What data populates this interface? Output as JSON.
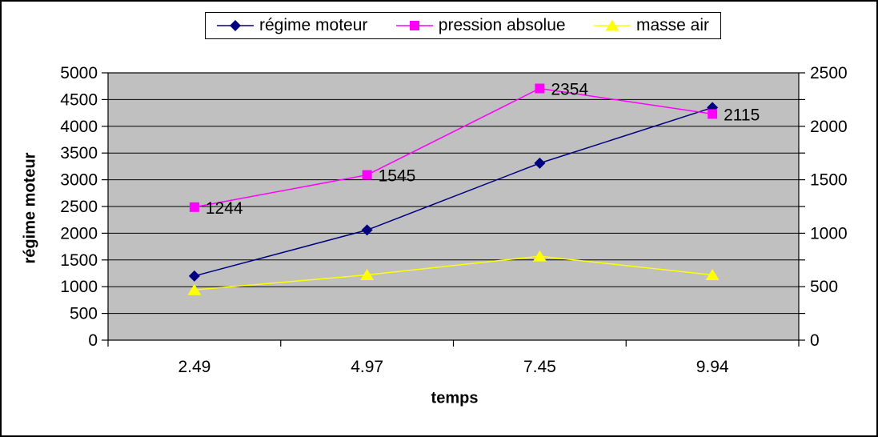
{
  "chart_data": {
    "type": "line",
    "categories": [
      "2.49",
      "4.97",
      "7.45",
      "9.94"
    ],
    "xlabel": "temps",
    "left_axis": {
      "title": "régime moteur",
      "min": 0,
      "max": 5000,
      "step": 500,
      "tick_labels": [
        "0",
        "500",
        "1000",
        "1500",
        "2000",
        "2500",
        "3000",
        "3500",
        "4000",
        "4500",
        "5000"
      ]
    },
    "right_axis": {
      "min": 0,
      "max": 2500,
      "tick_step": 250,
      "label_step": 500,
      "tick_labels": [
        "0",
        "500",
        "1000",
        "1500",
        "2000",
        "2500"
      ]
    },
    "series": [
      {
        "name": "régime moteur",
        "axis": "left",
        "color": "#000080",
        "marker": "diamond",
        "values": [
          1200,
          2060,
          3310,
          4350
        ]
      },
      {
        "name": "pression absolue",
        "axis": "right",
        "color": "#FF00FF",
        "marker": "square",
        "values": [
          1244,
          1545,
          2354,
          2115
        ],
        "data_labels": [
          "1244",
          "1545",
          "2354",
          "2115"
        ]
      },
      {
        "name": "masse air",
        "axis": "right",
        "color": "#FFFF00",
        "marker": "triangle",
        "values": [
          470,
          610,
          785,
          610
        ]
      }
    ],
    "legend": {
      "position": "top",
      "entries": [
        "régime moteur",
        "pression absolue",
        "masse air"
      ]
    },
    "grid": true,
    "plot_bg_color": "#C0C0C0",
    "gridline_color": "#000000",
    "text_color": "#000000"
  }
}
